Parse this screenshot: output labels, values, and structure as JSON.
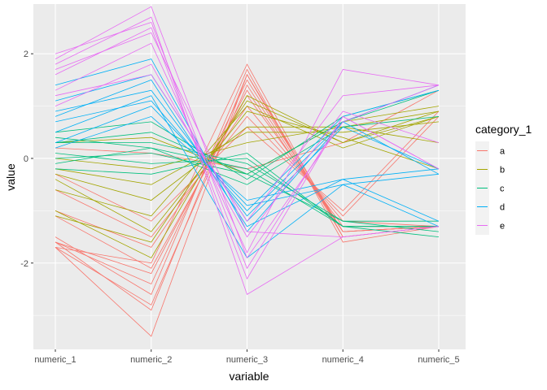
{
  "chart_data": {
    "type": "line",
    "subtype": "parallel-coordinates",
    "xlabel": "variable",
    "ylabel": "value",
    "categories": [
      "numeric_1",
      "numeric_2",
      "numeric_3",
      "numeric_4",
      "numeric_5"
    ],
    "ylim": [
      -3.65,
      2.95
    ],
    "yticks": [
      -2,
      0,
      2
    ],
    "grid": true,
    "legend": {
      "title": "category_1",
      "position": "right",
      "items": [
        "a",
        "b",
        "c",
        "d",
        "e"
      ]
    },
    "colors": {
      "panel_bg": "#EBEBEB",
      "grid": "#FFFFFF",
      "a": "#F8766D",
      "b": "#A3A500",
      "c": "#00BF7D",
      "d": "#00B0F6",
      "e": "#E76BF3"
    },
    "series": [
      {
        "group": "a",
        "values": [
          -1.6,
          -2.4,
          1.5,
          -1.4,
          -1.3
        ]
      },
      {
        "group": "a",
        "values": [
          -1.7,
          -3.4,
          1.6,
          -1.5,
          -1.3
        ]
      },
      {
        "group": "a",
        "values": [
          -1.7,
          -2.8,
          1.4,
          -1.4,
          -1.3
        ]
      },
      {
        "group": "a",
        "values": [
          -1.5,
          -2.6,
          1.7,
          -1.6,
          -1.3
        ]
      },
      {
        "group": "a",
        "values": [
          -1.6,
          -2.2,
          1.3,
          -1.4,
          -1.3
        ]
      },
      {
        "group": "a",
        "values": [
          -1.7,
          -2.0,
          1.8,
          -1.5,
          -1.3
        ]
      },
      {
        "group": "a",
        "values": [
          -1.1,
          -2.1,
          1.2,
          -1.3,
          -1.3
        ]
      },
      {
        "group": "a",
        "values": [
          -1.0,
          -1.7,
          1.0,
          -1.2,
          -1.3
        ]
      },
      {
        "group": "a",
        "values": [
          -0.6,
          -1.5,
          0.8,
          -1.1,
          0.8
        ]
      },
      {
        "group": "a",
        "values": [
          -0.3,
          -1.2,
          0.6,
          -1.0,
          0.9
        ]
      },
      {
        "group": "a",
        "values": [
          0.2,
          0.1,
          -0.2,
          0.3,
          1.3
        ]
      },
      {
        "group": "a",
        "values": [
          -1.6,
          -2.9,
          1.6,
          -1.4,
          -1.3
        ]
      },
      {
        "group": "b",
        "values": [
          -1.0,
          -1.9,
          1.2,
          0.3,
          0.8
        ]
      },
      {
        "group": "b",
        "values": [
          -0.3,
          -0.8,
          0.6,
          0.6,
          0.3
        ]
      },
      {
        "group": "b",
        "values": [
          -1.1,
          -1.6,
          1.1,
          0.3,
          0.9
        ]
      },
      {
        "group": "b",
        "values": [
          -0.2,
          -0.5,
          0.5,
          0.5,
          0.7
        ]
      },
      {
        "group": "b",
        "values": [
          -0.6,
          -1.1,
          1.0,
          0.2,
          0.8
        ]
      },
      {
        "group": "b",
        "values": [
          0.0,
          -0.2,
          0.3,
          0.6,
          0.9
        ]
      },
      {
        "group": "b",
        "values": [
          -0.4,
          -1.4,
          0.9,
          0.4,
          -0.2
        ]
      },
      {
        "group": "b",
        "values": [
          0.3,
          0.4,
          -0.3,
          0.7,
          1.0
        ]
      },
      {
        "group": "c",
        "values": [
          -0.1,
          0.2,
          -0.2,
          -1.3,
          -1.3
        ]
      },
      {
        "group": "c",
        "values": [
          0.3,
          0.3,
          -0.1,
          -1.2,
          -1.2
        ]
      },
      {
        "group": "c",
        "values": [
          0.5,
          0.7,
          -0.4,
          0.8,
          1.3
        ]
      },
      {
        "group": "c",
        "values": [
          0.1,
          -0.1,
          0.0,
          -1.3,
          -1.5
        ]
      },
      {
        "group": "c",
        "values": [
          -0.2,
          -0.3,
          0.1,
          -1.3,
          -1.3
        ]
      },
      {
        "group": "c",
        "values": [
          0.3,
          0.5,
          -0.3,
          0.7,
          1.3
        ]
      },
      {
        "group": "c",
        "values": [
          0.0,
          0.1,
          -0.3,
          -1.2,
          -1.4
        ]
      },
      {
        "group": "c",
        "values": [
          0.4,
          0.2,
          -0.5,
          0.6,
          0.8
        ]
      },
      {
        "group": "d",
        "values": [
          0.9,
          1.3,
          -1.1,
          0.7,
          -0.3
        ]
      },
      {
        "group": "d",
        "values": [
          0.3,
          1.0,
          -0.9,
          -0.5,
          -0.3
        ]
      },
      {
        "group": "d",
        "values": [
          1.4,
          1.9,
          -1.4,
          0.7,
          1.4
        ]
      },
      {
        "group": "d",
        "values": [
          0.5,
          1.2,
          -1.9,
          -0.5,
          -1.3
        ]
      },
      {
        "group": "d",
        "values": [
          1.1,
          1.6,
          -1.2,
          0.6,
          -0.2
        ]
      },
      {
        "group": "d",
        "values": [
          0.2,
          0.8,
          -0.8,
          -0.4,
          -1.2
        ]
      },
      {
        "group": "d",
        "values": [
          0.7,
          1.1,
          -1.0,
          0.8,
          1.3
        ]
      },
      {
        "group": "d",
        "values": [
          0.8,
          1.5,
          -1.3,
          -0.4,
          -0.2
        ]
      },
      {
        "group": "e",
        "values": [
          1.9,
          2.9,
          -1.9,
          0.7,
          1.4
        ]
      },
      {
        "group": "e",
        "values": [
          1.6,
          2.5,
          -2.3,
          0.8,
          -0.2
        ]
      },
      {
        "group": "e",
        "values": [
          1.8,
          2.7,
          -2.6,
          -1.5,
          -1.3
        ]
      },
      {
        "group": "e",
        "values": [
          1.3,
          2.2,
          -1.8,
          1.7,
          1.4
        ]
      },
      {
        "group": "e",
        "values": [
          1.0,
          1.8,
          -1.5,
          0.9,
          0.3
        ]
      },
      {
        "group": "e",
        "values": [
          1.7,
          2.4,
          -1.4,
          -1.5,
          -1.3
        ]
      },
      {
        "group": "e",
        "values": [
          1.2,
          1.6,
          -1.2,
          1.2,
          1.4
        ]
      },
      {
        "group": "e",
        "values": [
          2.0,
          2.6,
          -2.1,
          0.8,
          -0.2
        ]
      }
    ]
  }
}
